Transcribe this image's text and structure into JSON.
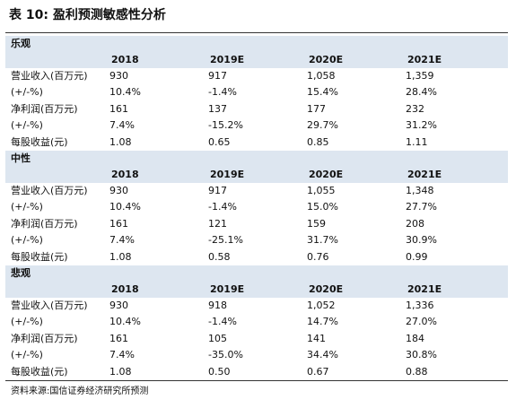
{
  "title": "表 10:  盈利预测敏感性分析",
  "sections": [
    {
      "name": "乐观",
      "header": [
        "2018",
        "2019E",
        "2020E",
        "2021E"
      ],
      "rows": [
        [
          "营业收入(百万元)",
          "930",
          "917",
          "1,058",
          "1,359"
        ],
        [
          "(+/-%)",
          "10.4%",
          "-1.4%",
          "15.4%",
          "28.4%"
        ],
        [
          "净利润(百万元)",
          "161",
          "137",
          "177",
          "232"
        ],
        [
          "(+/-%)",
          "7.4%",
          "-15.2%",
          "29.7%",
          "31.2%"
        ],
        [
          "每股收益(元)",
          "1.08",
          "0.65",
          "0.85",
          "1.11"
        ]
      ]
    },
    {
      "name": "中性",
      "header": [
        "2018",
        "2019E",
        "2020E",
        "2021E"
      ],
      "rows": [
        [
          "营业收入(百万元)",
          "930",
          "917",
          "1,055",
          "1,348"
        ],
        [
          "(+/-%)",
          "10.4%",
          "-1.4%",
          "15.0%",
          "27.7%"
        ],
        [
          "净利润(百万元)",
          "161",
          "121",
          "159",
          "208"
        ],
        [
          "(+/-%)",
          "7.4%",
          "-25.1%",
          "31.7%",
          "30.9%"
        ],
        [
          "每股收益(元)",
          "1.08",
          "0.58",
          "0.76",
          "0.99"
        ]
      ]
    },
    {
      "name": "悲观",
      "header": [
        "2018",
        "2019E",
        "2020E",
        "2021E"
      ],
      "rows": [
        [
          "营业收入(百万元)",
          "930",
          "918",
          "1,052",
          "1,336"
        ],
        [
          "(+/-%)",
          "10.4%",
          "-1.4%",
          "14.7%",
          "27.0%"
        ],
        [
          "净利润(百万元)",
          "161",
          "105",
          "141",
          "184"
        ],
        [
          "(+/-%)",
          "7.4%",
          "-35.0%",
          "34.4%",
          "30.8%"
        ],
        [
          "每股收益(元)",
          "1.08",
          "0.50",
          "0.67",
          "0.88"
        ]
      ]
    }
  ],
  "source": "资料来源:国信证券经济研究所预测"
}
